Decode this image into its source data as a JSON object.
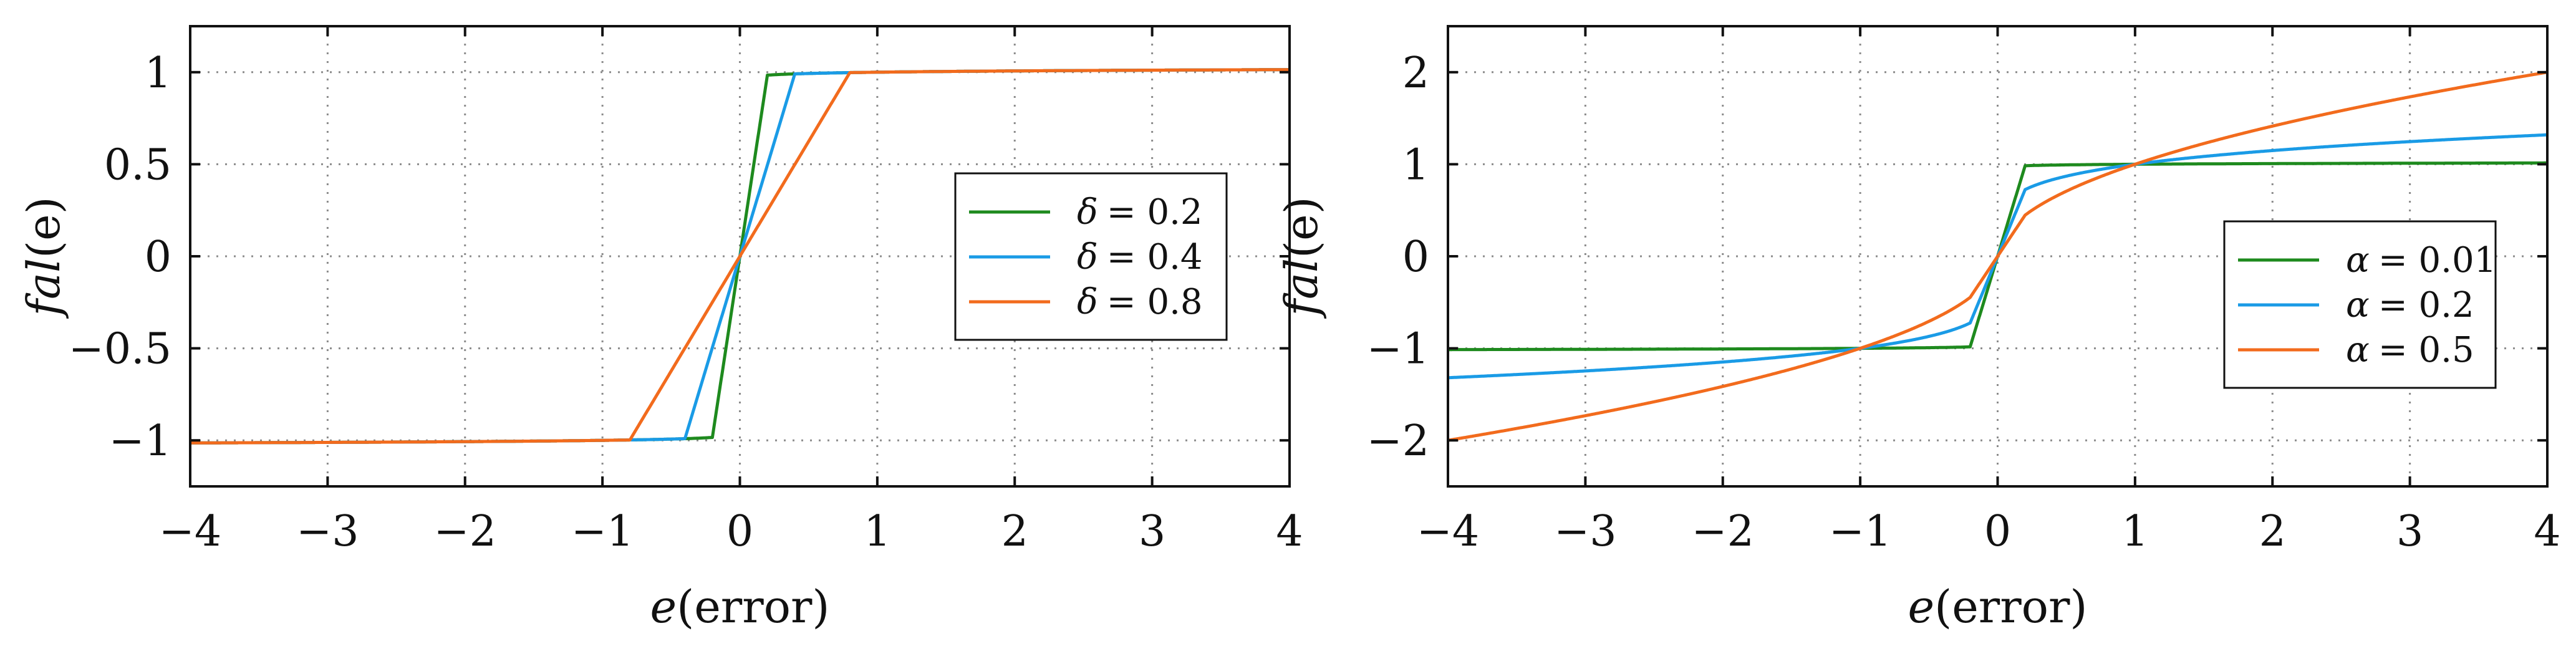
{
  "chart_data": [
    {
      "type": "line",
      "xlabel_var": "e",
      "xlabel_rest": "(error)",
      "ylabel_var": "fal",
      "ylabel_rest": "(e)",
      "xlim": [
        -4,
        4
      ],
      "ylim": [
        -1.25,
        1.25
      ],
      "xticks": [
        -4,
        -3,
        -2,
        -1,
        0,
        1,
        2,
        3,
        4
      ],
      "xtick_labels": [
        "−4",
        "−3",
        "−2",
        "−1",
        "0",
        "1",
        "2",
        "3",
        "4"
      ],
      "yticks": [
        -1,
        -0.5,
        0,
        0.5,
        1
      ],
      "ytick_labels": [
        "−1",
        "−0.5",
        "0",
        "0.5",
        "1"
      ],
      "grid": "dotted",
      "legend_position": "center-right",
      "fal_alpha": 0.01,
      "series": [
        {
          "name": "δ = 0.2",
          "symbol": "δ",
          "value_text": "= 0.2",
          "alpha": 0.01,
          "delta": 0.2,
          "color": "#1e8a1e"
        },
        {
          "name": "δ = 0.4",
          "symbol": "δ",
          "value_text": "= 0.4",
          "alpha": 0.01,
          "delta": 0.4,
          "color": "#1a9be6"
        },
        {
          "name": "δ = 0.8",
          "symbol": "δ",
          "value_text": "= 0.8",
          "alpha": 0.01,
          "delta": 0.8,
          "color": "#f26b1d"
        }
      ]
    },
    {
      "type": "line",
      "xlabel_var": "e",
      "xlabel_rest": "(error)",
      "ylabel_var": "fal",
      "ylabel_rest": "(e)",
      "xlim": [
        -4,
        4
      ],
      "ylim": [
        -2.5,
        2.5
      ],
      "xticks": [
        -4,
        -3,
        -2,
        -1,
        0,
        1,
        2,
        3,
        4
      ],
      "xtick_labels": [
        "−4",
        "−3",
        "−2",
        "−1",
        "0",
        "1",
        "2",
        "3",
        "4"
      ],
      "yticks": [
        -2,
        -1,
        0,
        1,
        2
      ],
      "ytick_labels": [
        "−2",
        "−1",
        "0",
        "1",
        "2"
      ],
      "grid": "dotted",
      "legend_position": "center-right",
      "fal_delta": 0.2,
      "series": [
        {
          "name": "α = 0.01",
          "symbol": "α",
          "value_text": "= 0.01",
          "alpha": 0.01,
          "delta": 0.2,
          "color": "#1e8a1e"
        },
        {
          "name": "α = 0.2",
          "symbol": "α",
          "value_text": "= 0.2",
          "alpha": 0.2,
          "delta": 0.2,
          "color": "#1a9be6"
        },
        {
          "name": "α = 0.5",
          "symbol": "α",
          "value_text": "= 0.5",
          "alpha": 0.5,
          "delta": 0.2,
          "color": "#f26b1d"
        }
      ]
    }
  ]
}
